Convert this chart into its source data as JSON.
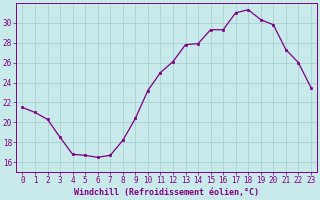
{
  "x": [
    0,
    1,
    2,
    3,
    4,
    5,
    6,
    7,
    8,
    9,
    10,
    11,
    12,
    13,
    14,
    15,
    16,
    17,
    18,
    19,
    20,
    21,
    22,
    23
  ],
  "y": [
    21.5,
    21.0,
    20.3,
    18.5,
    16.8,
    16.7,
    16.5,
    16.7,
    18.2,
    20.4,
    23.2,
    25.0,
    26.1,
    27.8,
    27.9,
    29.3,
    29.3,
    31.0,
    31.3,
    30.3,
    29.8,
    27.3,
    26.0,
    23.5
  ],
  "line_color": "#800080",
  "marker": "s",
  "marker_size": 2,
  "bg_color": "#c8eaea",
  "grid_color": "#a8d0d0",
  "axis_color": "#800080",
  "xlabel": "Windchill (Refroidissement éolien,°C)",
  "xlabel_fontsize": 6.0,
  "tick_fontsize": 5.5,
  "ylim": [
    15,
    32
  ],
  "yticks": [
    16,
    18,
    20,
    22,
    24,
    26,
    28,
    30
  ],
  "xticks": [
    0,
    1,
    2,
    3,
    4,
    5,
    6,
    7,
    8,
    9,
    10,
    11,
    12,
    13,
    14,
    15,
    16,
    17,
    18,
    19,
    20,
    21,
    22,
    23
  ]
}
